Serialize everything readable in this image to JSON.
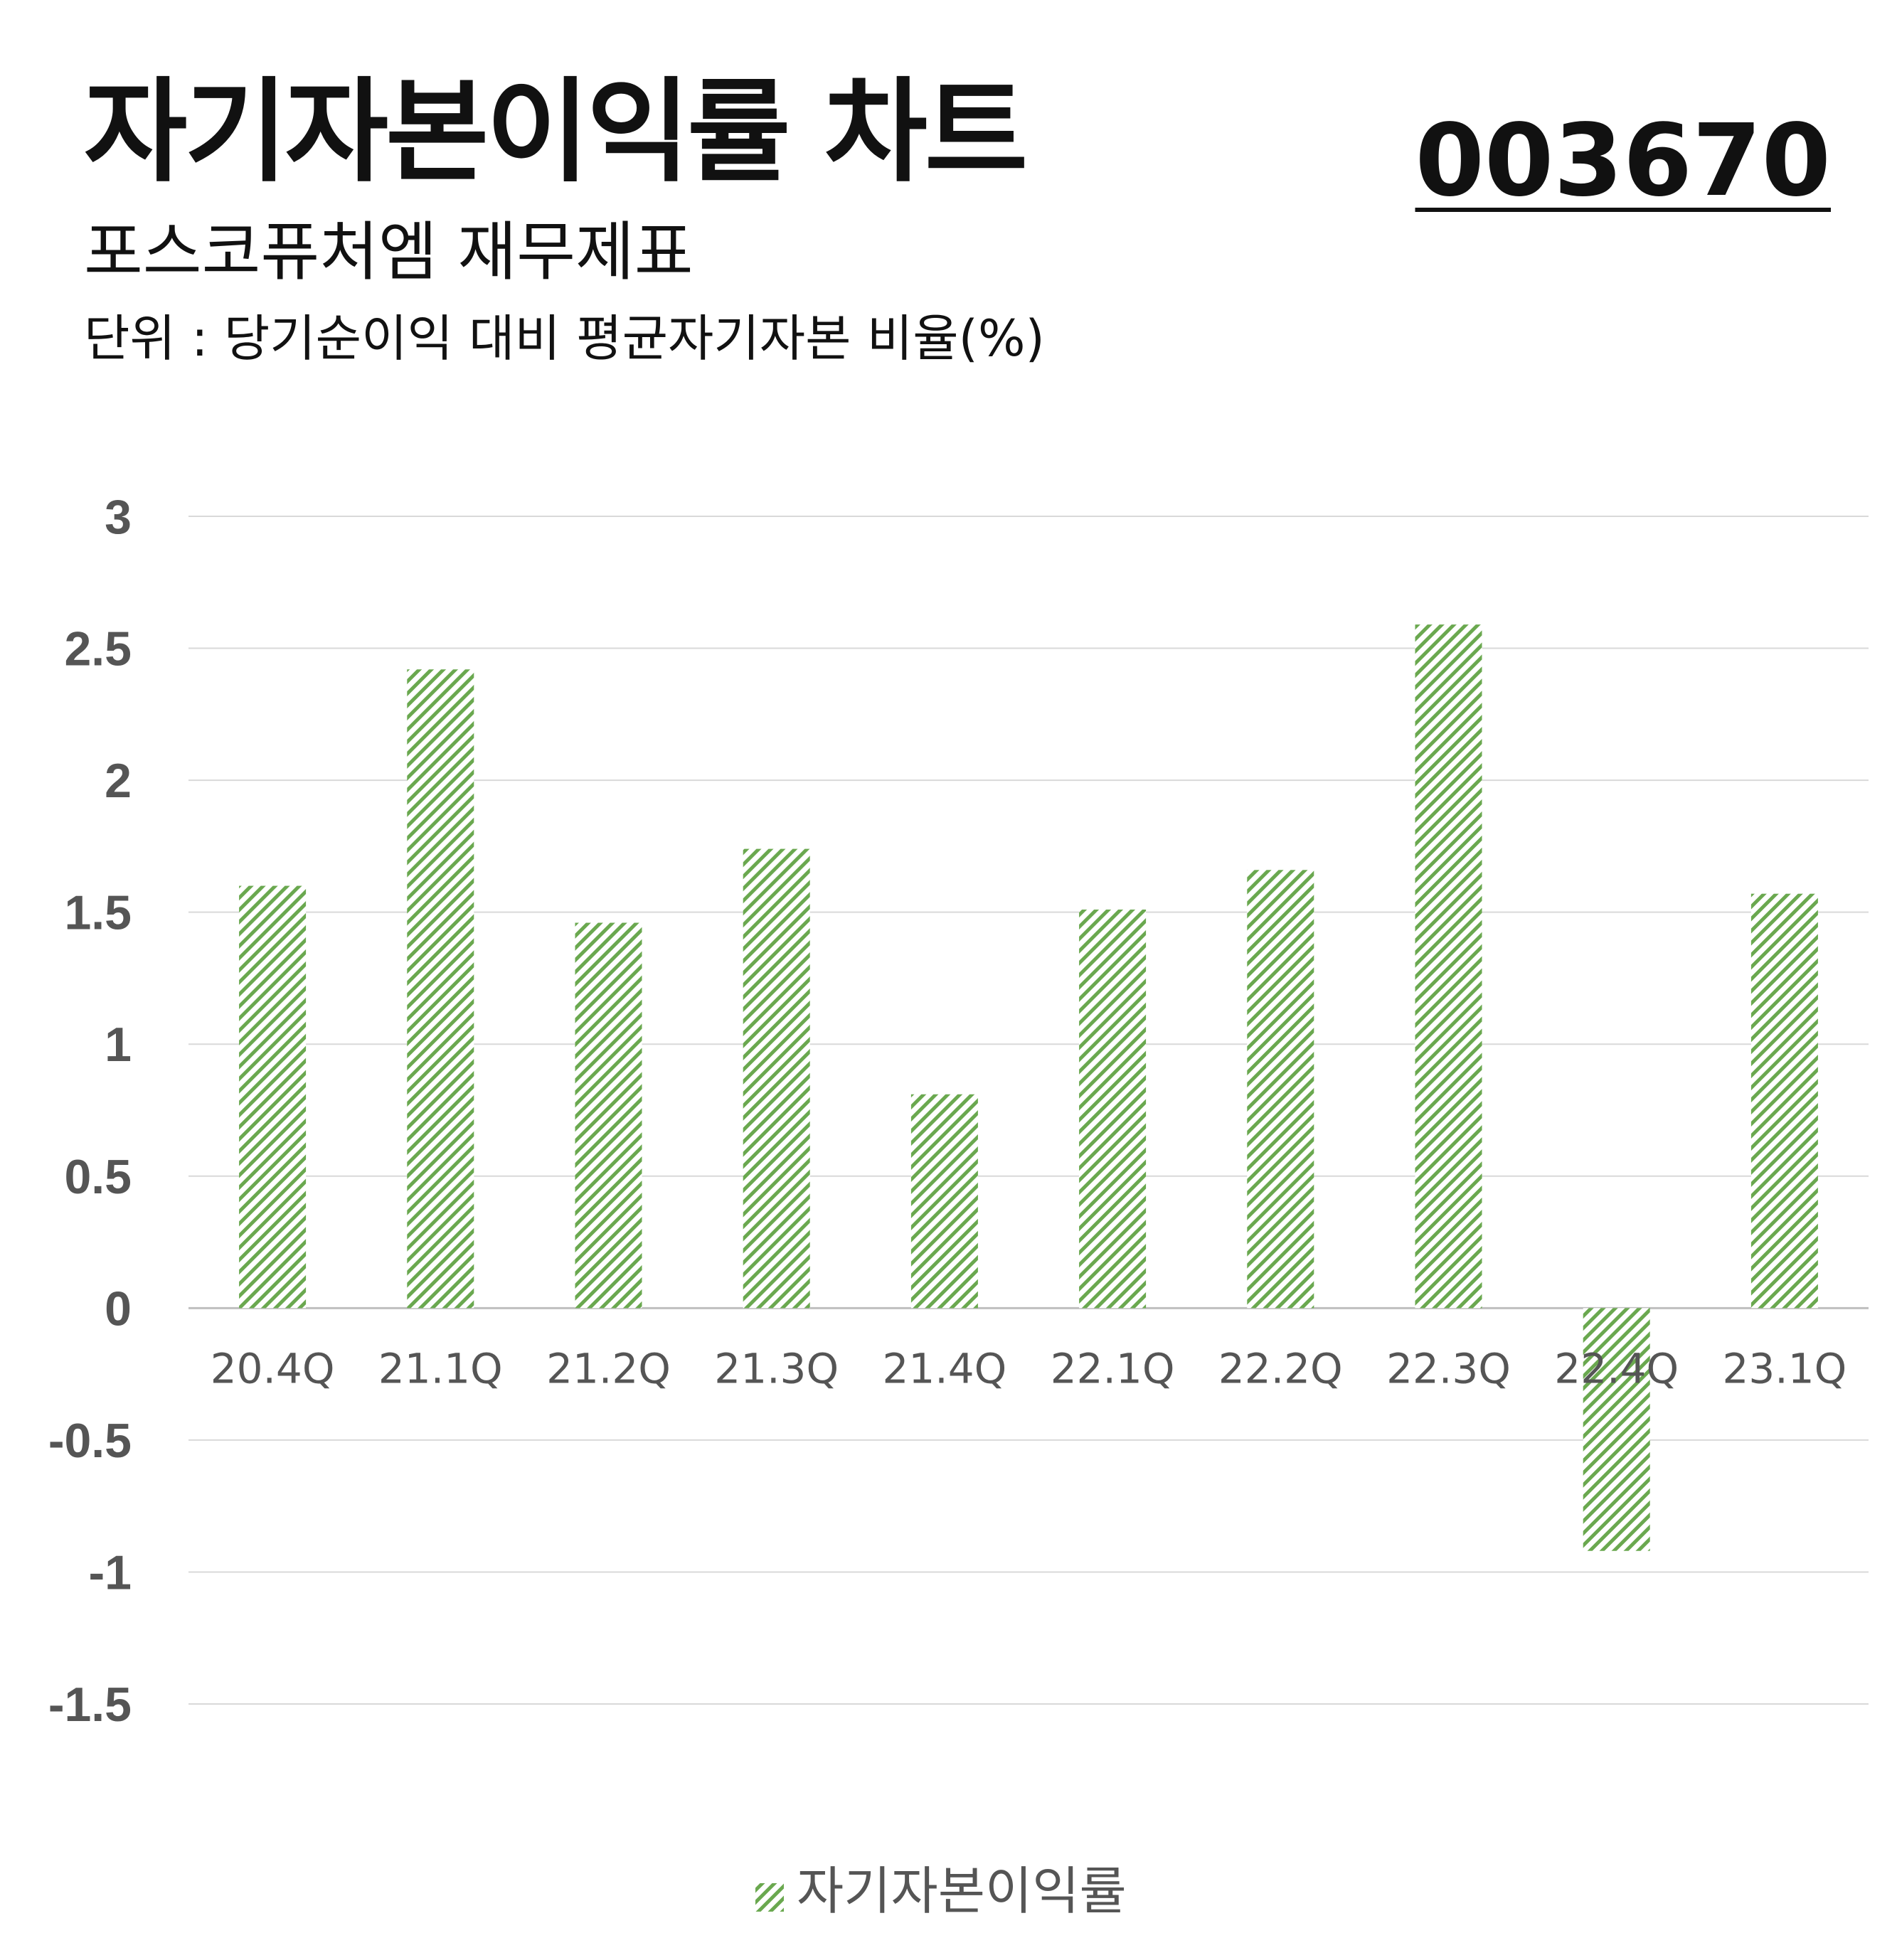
{
  "header": {
    "title": "자기자본이익률 차트",
    "subtitle": "포스코퓨처엠 재무제표",
    "unit": "단위 : 당기순이익 대비 평균자기자본 비율(%)",
    "code": "003670"
  },
  "colors": {
    "bar": "#6aa84f",
    "grid": "#d9d9d9",
    "tick_text": "#555555"
  },
  "chart_data": {
    "type": "bar",
    "categories": [
      "20.4Q",
      "21.1Q",
      "21.2Q",
      "21.3Q",
      "21.4Q",
      "22.1Q",
      "22.2Q",
      "22.3Q",
      "22.4Q",
      "23.1Q"
    ],
    "series": [
      {
        "name": "자기자본이익률",
        "values": [
          1.6,
          2.42,
          1.46,
          1.74,
          0.81,
          1.51,
          1.66,
          2.59,
          -0.92,
          1.57
        ]
      }
    ],
    "yticks": [
      "3",
      "2.5",
      "2",
      "1.5",
      "1",
      "0.5",
      "0",
      "-0.5",
      "-1",
      "-1.5"
    ],
    "ylim": [
      -1.5,
      3
    ],
    "grid": true,
    "legend": "bottom-center",
    "fill_pattern": "diagonal-hatch"
  }
}
